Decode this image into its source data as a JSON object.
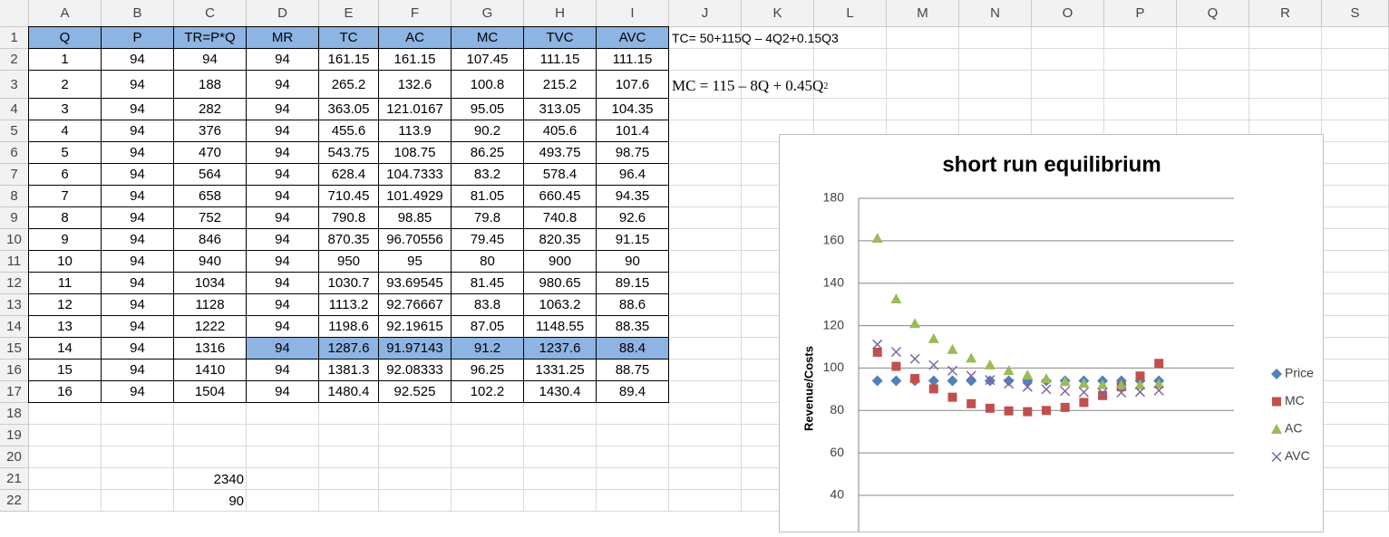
{
  "column_headers": [
    "A",
    "B",
    "C",
    "D",
    "E",
    "F",
    "G",
    "H",
    "I",
    "J",
    "K",
    "L",
    "M",
    "N",
    "O",
    "P",
    "Q",
    "R",
    "S"
  ],
  "row_headers": [
    1,
    2,
    3,
    4,
    5,
    6,
    7,
    8,
    9,
    10,
    11,
    12,
    13,
    14,
    15,
    16,
    17,
    18,
    19,
    20,
    21,
    22
  ],
  "table": {
    "header": [
      "Q",
      "P",
      "TR=P*Q",
      "MR",
      "TC",
      "AC",
      "MC",
      "TVC",
      "AVC"
    ],
    "rows": [
      [
        1,
        94,
        94,
        94,
        161.15,
        161.15,
        107.45,
        111.15,
        111.15
      ],
      [
        2,
        94,
        188,
        94,
        265.2,
        132.6,
        100.8,
        215.2,
        107.6
      ],
      [
        3,
        94,
        282,
        94,
        363.05,
        121.0167,
        95.05,
        313.05,
        104.35
      ],
      [
        4,
        94,
        376,
        94,
        455.6,
        113.9,
        90.2,
        405.6,
        101.4
      ],
      [
        5,
        94,
        470,
        94,
        543.75,
        108.75,
        86.25,
        493.75,
        98.75
      ],
      [
        6,
        94,
        564,
        94,
        628.4,
        104.7333,
        83.2,
        578.4,
        96.4
      ],
      [
        7,
        94,
        658,
        94,
        710.45,
        101.4929,
        81.05,
        660.45,
        94.35
      ],
      [
        8,
        94,
        752,
        94,
        790.8,
        98.85,
        79.8,
        740.8,
        92.6
      ],
      [
        9,
        94,
        846,
        94,
        870.35,
        96.70556,
        79.45,
        820.35,
        91.15
      ],
      [
        10,
        94,
        940,
        94,
        950,
        95,
        80,
        900,
        90
      ],
      [
        11,
        94,
        1034,
        94,
        1030.7,
        93.69545,
        81.45,
        980.65,
        89.15
      ],
      [
        12,
        94,
        1128,
        94,
        1113.2,
        92.76667,
        83.8,
        1063.2,
        88.6
      ],
      [
        13,
        94,
        1222,
        94,
        1198.6,
        92.19615,
        87.05,
        1148.55,
        88.35
      ],
      [
        14,
        94,
        1316,
        94,
        1287.6,
        91.97143,
        91.2,
        1237.6,
        88.4
      ],
      [
        15,
        94,
        1410,
        94,
        1381.3,
        92.08333,
        96.25,
        1331.25,
        88.75
      ],
      [
        16,
        94,
        1504,
        94,
        1480.4,
        92.525,
        102.2,
        1430.4,
        89.4
      ]
    ]
  },
  "notes": {
    "tc_formula": "TC= 50+115Q – 4Q2+0.15Q3",
    "mc_formula": {
      "text": "MC = 115 – 8Q + 0.45Q",
      "superscript": "2"
    }
  },
  "totals": [
    2340,
    90
  ],
  "chart_data": {
    "type": "scatter",
    "title": "short run equilibrium",
    "y_label": "Revenue/Costs",
    "x": [
      1,
      2,
      3,
      4,
      5,
      6,
      7,
      8,
      9,
      10,
      11,
      12,
      13,
      14,
      15,
      16
    ],
    "xlim": [
      0,
      20
    ],
    "ylim": [
      40,
      180
    ],
    "yticks": [
      40,
      60,
      80,
      100,
      120,
      140,
      160,
      180
    ],
    "grid": true,
    "legend": "right",
    "series": [
      {
        "name": "Price",
        "color": "#4f81bd",
        "marker": "diamond",
        "values": [
          94,
          94,
          94,
          94,
          94,
          94,
          94,
          94,
          94,
          94,
          94,
          94,
          94,
          94,
          94,
          94
        ]
      },
      {
        "name": "MC",
        "color": "#c0504d",
        "marker": "square",
        "values": [
          107.45,
          100.8,
          95.05,
          90.2,
          86.25,
          83.2,
          81.05,
          79.8,
          79.45,
          80,
          81.45,
          83.8,
          87.05,
          91.2,
          96.25,
          102.2
        ]
      },
      {
        "name": "AC",
        "color": "#9bbb59",
        "marker": "triangle",
        "values": [
          161.15,
          132.6,
          121.0167,
          113.9,
          108.75,
          104.7333,
          101.4929,
          98.85,
          96.70556,
          95,
          93.69545,
          92.76667,
          92.19615,
          91.97143,
          92.08333,
          92.525
        ]
      },
      {
        "name": "AVC",
        "color": "#8064a2",
        "marker": "x",
        "values": [
          111.15,
          107.6,
          104.35,
          101.4,
          98.75,
          96.4,
          94.35,
          92.6,
          91.15,
          90,
          89.15,
          88.6,
          88.35,
          88.4,
          88.75,
          89.4
        ]
      }
    ]
  }
}
